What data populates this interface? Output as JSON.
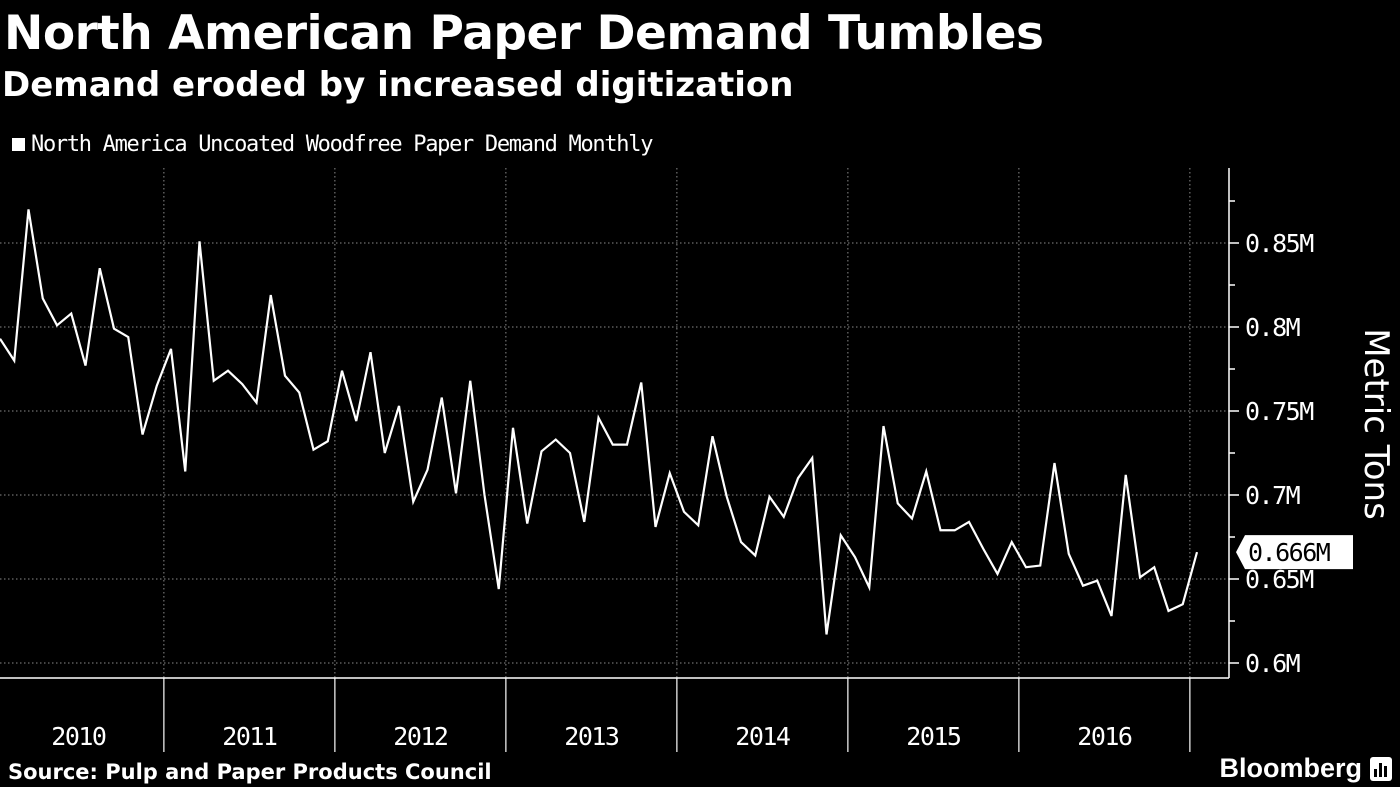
{
  "header": {
    "title": "North American Paper Demand Tumbles",
    "subtitle": "Demand eroded by increased digitization"
  },
  "footer": {
    "source": "Source: Pulp and Paper Products Council",
    "brand": "Bloomberg"
  },
  "colors": {
    "background": "#000000",
    "line": "#ffffff",
    "grid": "#8a8a8a",
    "badge_bg": "#ffffff",
    "badge_text": "#000000"
  },
  "chart_data": {
    "type": "line",
    "title": "North American Paper Demand Tumbles",
    "subtitle": "Demand eroded by increased digitization",
    "ylabel": "Metric Tons",
    "xlabel": "",
    "legend": "top-left",
    "y_axis_side": "right",
    "grid": true,
    "ylim": [
      0.595,
      0.89
    ],
    "y_ticks": [
      0.6,
      0.65,
      0.7,
      0.75,
      0.8,
      0.85
    ],
    "y_tick_labels": [
      "0.6M",
      "0.65M",
      "0.7M",
      "0.75M",
      "0.8M",
      "0.85M"
    ],
    "x_start": "2010-01",
    "x_category_labels": [
      "2010",
      "2011",
      "2012",
      "2013",
      "2014",
      "2015",
      "2016"
    ],
    "last_value_label": "0.666M",
    "series": [
      {
        "name": "North America Uncoated Woodfree Paper Demand Monthly",
        "values": [
          0.793,
          0.78,
          0.87,
          0.817,
          0.801,
          0.808,
          0.777,
          0.835,
          0.799,
          0.794,
          0.736,
          0.765,
          0.787,
          0.714,
          0.851,
          0.768,
          0.774,
          0.766,
          0.755,
          0.819,
          0.771,
          0.761,
          0.727,
          0.732,
          0.774,
          0.744,
          0.785,
          0.725,
          0.753,
          0.696,
          0.715,
          0.758,
          0.701,
          0.768,
          0.7,
          0.644,
          0.74,
          0.683,
          0.726,
          0.733,
          0.725,
          0.684,
          0.746,
          0.73,
          0.73,
          0.767,
          0.681,
          0.713,
          0.69,
          0.682,
          0.735,
          0.699,
          0.672,
          0.664,
          0.699,
          0.687,
          0.71,
          0.722,
          0.617,
          0.676,
          0.663,
          0.645,
          0.741,
          0.695,
          0.686,
          0.714,
          0.679,
          0.679,
          0.684,
          0.668,
          0.653,
          0.672,
          0.657,
          0.658,
          0.719,
          0.665,
          0.646,
          0.649,
          0.628,
          0.712,
          0.651,
          0.657,
          0.631,
          0.635,
          0.666
        ]
      }
    ]
  }
}
